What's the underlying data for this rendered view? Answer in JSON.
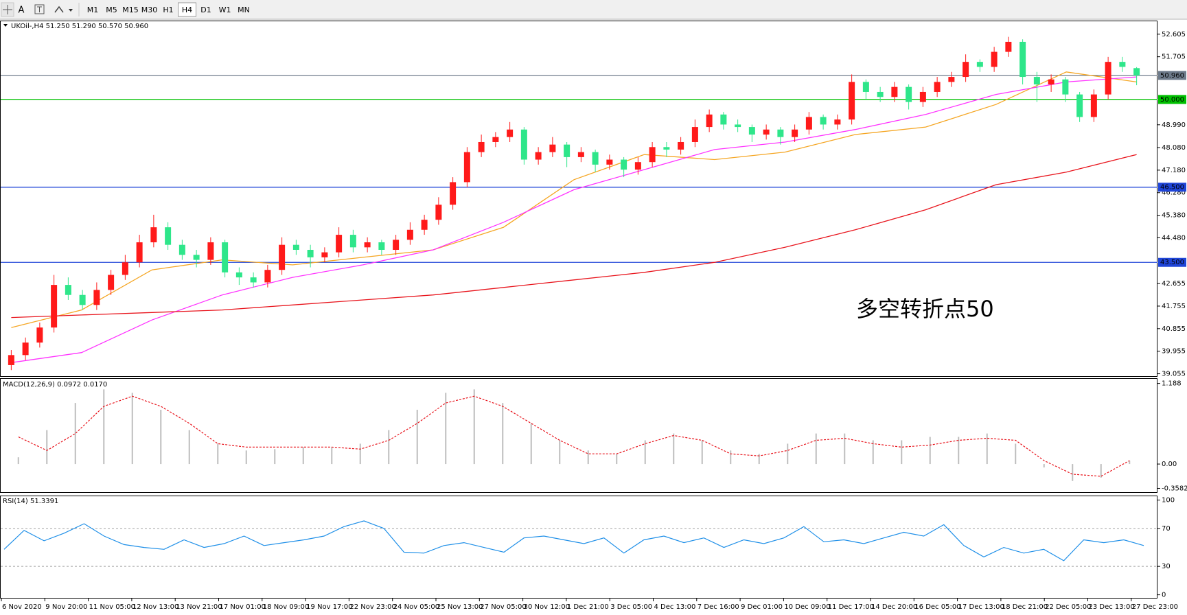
{
  "toolbar": {
    "font_button": "A",
    "timeframes": [
      "M1",
      "M5",
      "M15",
      "M30",
      "H1",
      "H4",
      "D1",
      "W1",
      "MN"
    ],
    "active_index": 5
  },
  "time_axis": [
    "6 Nov 2020",
    "9 Nov 20:00",
    "11 Nov 05:00",
    "12 Nov 13:00",
    "13 Nov 21:00",
    "17 Nov 01:00",
    "18 Nov 09:00",
    "19 Nov 17:00",
    "22 Nov 23:00",
    "24 Nov 05:00",
    "25 Nov 13:00",
    "27 Nov 05:00",
    "30 Nov 12:00",
    "1 Dec 21:00",
    "3 Dec 05:00",
    "4 Dec 13:00",
    "7 Dec 16:00",
    "9 Dec 01:00",
    "10 Dec 09:00",
    "11 Dec 17:00",
    "14 Dec 20:00",
    "16 Dec 05:00",
    "17 Dec 13:00",
    "18 Dec 21:00",
    "22 Dec 05:00",
    "23 Dec 13:00",
    "27 Dec 23:00"
  ],
  "chart_data": [
    {
      "type": "candlestick",
      "title": "UKOil-,H4  51.250 51.290 50.570 50.960",
      "annotation": "多空转折点50",
      "annotation_color": "#e0201c",
      "up_color": "#ff1a1a",
      "down_color": "#2ee68a",
      "open": [
        39.4,
        39.8,
        40.3,
        40.9,
        42.6,
        42.2,
        41.8,
        42.4,
        43.0,
        43.5,
        44.3,
        44.9,
        44.2,
        43.8,
        43.6,
        44.3,
        43.1,
        42.9,
        42.7,
        43.2,
        44.2,
        44.0,
        43.7,
        43.9,
        44.6,
        44.1,
        44.3,
        44.0,
        44.4,
        44.8,
        45.2,
        45.8,
        46.7,
        47.9,
        48.3,
        48.5,
        48.8,
        47.6,
        47.9,
        48.2,
        47.7,
        47.9,
        47.4,
        47.6,
        47.2,
        47.5,
        48.1,
        48.0,
        48.3,
        48.9,
        49.4,
        49.0,
        48.9,
        48.6,
        48.8,
        48.5,
        48.8,
        49.3,
        49.0,
        49.2,
        50.7,
        50.3,
        50.1,
        50.5,
        49.9,
        50.3,
        50.7,
        50.9,
        51.5,
        51.3,
        51.9,
        52.3,
        50.9,
        50.6,
        50.8,
        50.2,
        49.3,
        50.2,
        51.5,
        51.25
      ],
      "high": [
        40.0,
        40.5,
        41.1,
        43.0,
        42.9,
        42.4,
        42.7,
        43.2,
        43.8,
        44.6,
        45.4,
        45.1,
        44.4,
        44.0,
        44.5,
        44.4,
        43.3,
        43.1,
        43.4,
        44.5,
        44.4,
        44.2,
        44.1,
        44.9,
        44.8,
        44.5,
        44.4,
        44.6,
        45.1,
        45.4,
        46.1,
        46.9,
        48.1,
        48.6,
        48.7,
        49.1,
        48.9,
        48.1,
        48.5,
        48.3,
        48.1,
        48.0,
        47.8,
        47.7,
        47.7,
        48.3,
        48.3,
        48.5,
        49.2,
        49.6,
        49.5,
        49.2,
        49.0,
        49.0,
        48.9,
        49.0,
        49.5,
        49.4,
        49.4,
        51.0,
        50.8,
        50.5,
        50.7,
        50.6,
        50.5,
        50.9,
        51.1,
        51.8,
        51.6,
        52.1,
        52.5,
        52.4,
        51.1,
        51.0,
        50.9,
        50.3,
        50.4,
        51.7,
        51.7,
        51.29
      ],
      "low": [
        39.2,
        39.6,
        40.1,
        40.7,
        42.0,
        41.6,
        41.6,
        42.2,
        42.8,
        43.3,
        44.1,
        44.0,
        43.6,
        43.3,
        43.4,
        42.9,
        42.6,
        42.5,
        42.5,
        43.0,
        43.8,
        43.3,
        43.5,
        43.7,
        43.9,
        43.9,
        43.8,
        43.8,
        44.2,
        44.6,
        45.0,
        45.6,
        46.5,
        47.7,
        48.1,
        48.3,
        47.4,
        47.4,
        47.7,
        47.3,
        47.5,
        47.1,
        47.2,
        46.9,
        47.0,
        47.3,
        47.7,
        47.8,
        48.1,
        48.7,
        48.8,
        48.7,
        48.3,
        48.4,
        48.2,
        48.3,
        48.6,
        48.8,
        48.8,
        49.0,
        50.0,
        49.9,
        49.9,
        49.6,
        49.7,
        50.1,
        50.5,
        50.7,
        51.1,
        51.1,
        51.7,
        50.6,
        49.9,
        50.3,
        49.9,
        49.1,
        49.1,
        50.0,
        51.1,
        50.57
      ],
      "close": [
        39.8,
        40.3,
        40.9,
        42.6,
        42.2,
        41.8,
        42.4,
        43.0,
        43.5,
        44.3,
        44.9,
        44.2,
        43.8,
        43.6,
        44.3,
        43.1,
        42.9,
        42.7,
        43.2,
        44.2,
        44.0,
        43.7,
        43.9,
        44.6,
        44.1,
        44.3,
        44.0,
        44.4,
        44.8,
        45.2,
        45.8,
        46.7,
        47.9,
        48.3,
        48.5,
        48.8,
        47.6,
        47.9,
        48.2,
        47.7,
        47.9,
        47.4,
        47.6,
        47.2,
        47.5,
        48.1,
        48.0,
        48.3,
        48.9,
        49.4,
        49.0,
        48.9,
        48.6,
        48.8,
        48.5,
        48.8,
        49.3,
        49.0,
        49.2,
        50.7,
        50.3,
        50.1,
        50.5,
        49.9,
        50.3,
        50.7,
        50.9,
        51.5,
        51.3,
        51.9,
        52.3,
        50.9,
        50.6,
        50.8,
        50.2,
        49.3,
        50.2,
        51.5,
        51.3,
        50.96
      ],
      "series": [
        {
          "color": "#f5a623",
          "values": [
            40.9,
            41.6,
            43.2,
            43.6,
            43.4,
            43.7,
            44.0,
            44.9,
            46.8,
            47.8,
            47.6,
            47.9,
            48.6,
            48.9,
            49.8,
            51.1,
            50.7
          ]
        },
        {
          "color": "#ff33ff",
          "values": [
            39.5,
            39.9,
            41.2,
            42.2,
            42.9,
            43.4,
            44.0,
            45.1,
            46.4,
            47.2,
            48.0,
            48.3,
            48.8,
            49.4,
            50.2,
            50.7,
            50.9
          ]
        },
        {
          "color": "#e8141c",
          "values": [
            41.3,
            41.4,
            41.5,
            41.6,
            41.8,
            42.0,
            42.2,
            42.5,
            42.8,
            43.1,
            43.5,
            44.1,
            44.8,
            45.6,
            46.6,
            47.1,
            47.8
          ]
        }
      ],
      "levels": [
        {
          "value": 50.96,
          "label": "50.960",
          "color": "#6e7b8b"
        },
        {
          "value": 50,
          "label": "50.000",
          "color": "#00c000"
        },
        {
          "value": 46.5,
          "label": "46.500",
          "color": "#1f45d8"
        },
        {
          "value": 43.5,
          "label": "43.500",
          "color": "#1f45d8"
        }
      ],
      "ylim": [
        38.96,
        53.12
      ],
      "yticks": [
        {
          "value": 52.605,
          "label": "52.605"
        },
        {
          "value": 51.705,
          "label": "51.705"
        },
        {
          "value": 48.99,
          "label": "48.990"
        },
        {
          "value": 48.08,
          "label": "48.080"
        },
        {
          "value": 47.18,
          "label": "47.180"
        },
        {
          "value": 46.28,
          "label": "46.280"
        },
        {
          "value": 45.38,
          "label": "45.380"
        },
        {
          "value": 44.48,
          "label": "44.480"
        },
        {
          "value": 42.655,
          "label": "42.655"
        },
        {
          "value": 41.755,
          "label": "41.755"
        },
        {
          "value": 40.855,
          "label": "40.855"
        },
        {
          "value": 39.955,
          "label": "39.955"
        },
        {
          "value": 39.055,
          "label": "39.055"
        }
      ]
    },
    {
      "type": "bar_line",
      "title": "MACD(12,26,9) 0.0972 0.0170",
      "series": [
        {
          "color": "#bdbdbd",
          "values": [
            0.1,
            0.5,
            0.9,
            1.1,
            1.05,
            0.8,
            0.5,
            0.3,
            0.2,
            0.22,
            0.25,
            0.25,
            0.3,
            0.5,
            0.8,
            1.05,
            1.1,
            0.9,
            0.6,
            0.35,
            0.2,
            0.15,
            0.35,
            0.45,
            0.35,
            0.2,
            0.15,
            0.3,
            0.45,
            0.45,
            0.35,
            0.35,
            0.4,
            0.4,
            0.45,
            0.3,
            -0.05,
            -0.25,
            -0.2,
            0.05
          ]
        },
        {
          "color": "#e8141c",
          "dashed": true,
          "values": [
            0.4,
            0.2,
            0.45,
            0.85,
            1.0,
            0.85,
            0.6,
            0.3,
            0.25,
            0.25,
            0.25,
            0.25,
            0.22,
            0.35,
            0.6,
            0.9,
            1.0,
            0.85,
            0.6,
            0.35,
            0.15,
            0.15,
            0.3,
            0.42,
            0.35,
            0.15,
            0.12,
            0.2,
            0.35,
            0.38,
            0.3,
            0.25,
            0.28,
            0.35,
            0.38,
            0.35,
            0.05,
            -0.15,
            -0.18,
            0.05
          ]
        }
      ],
      "ylim": [
        -0.414,
        1.255
      ],
      "yticks": [
        1.188,
        {
          "value": 0,
          "label": "0.00"
        },
        -0.3582
      ]
    },
    {
      "type": "line",
      "title": "RSI(14) 51.3391",
      "series": [
        {
          "color": "#1e8fe8",
          "values": [
            48,
            68,
            57,
            65,
            75,
            62,
            53,
            50,
            48,
            58,
            50,
            54,
            62,
            52,
            55,
            58,
            62,
            72,
            78,
            70,
            45,
            44,
            52,
            55,
            50,
            45,
            60,
            62,
            58,
            54,
            60,
            44,
            58,
            62,
            55,
            60,
            50,
            58,
            54,
            60,
            72,
            56,
            58,
            54,
            60,
            66,
            62,
            74,
            52,
            40,
            50,
            44,
            48,
            36,
            58,
            55,
            58,
            52
          ]
        }
      ],
      "dashed_levels": [
        70,
        30
      ],
      "ylim": [
        -3.2,
        104
      ],
      "yticks": [
        100,
        70,
        30,
        0
      ]
    }
  ]
}
